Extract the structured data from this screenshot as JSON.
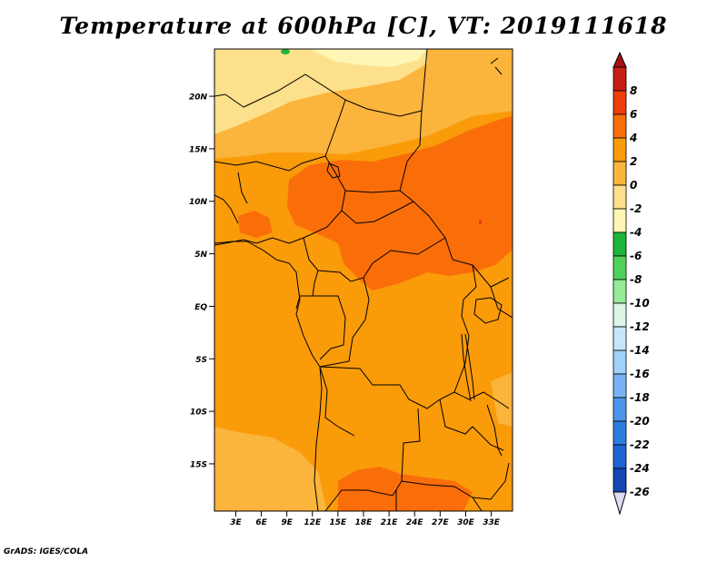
{
  "title": "Temperature at 600hPa [C], VT: 2019111618",
  "credit": "GrADS: IGES/COLA",
  "map": {
    "lat_labels": [
      {
        "label": "20N",
        "lat": 20
      },
      {
        "label": "15N",
        "lat": 15
      },
      {
        "label": "10N",
        "lat": 10
      },
      {
        "label": "5N",
        "lat": 5
      },
      {
        "label": "EQ",
        "lat": 0
      },
      {
        "label": "5S",
        "lat": -5
      },
      {
        "label": "10S",
        "lat": -10
      },
      {
        "label": "15S",
        "lat": -15
      }
    ],
    "lon_labels": [
      {
        "label": "3E",
        "lon": 3
      },
      {
        "label": "6E",
        "lon": 6
      },
      {
        "label": "9E",
        "lon": 9
      },
      {
        "label": "12E",
        "lon": 12
      },
      {
        "label": "15E",
        "lon": 15
      },
      {
        "label": "18E",
        "lon": 18
      },
      {
        "label": "21E",
        "lon": 21
      },
      {
        "label": "24E",
        "lon": 24
      },
      {
        "label": "27E",
        "lon": 27
      },
      {
        "label": "30E",
        "lon": 30
      },
      {
        "label": "33E",
        "lon": 33
      }
    ]
  },
  "colorbar": {
    "levels": [
      {
        "label": "8",
        "color": "#c81e14"
      },
      {
        "label": "6",
        "color": "#f03c0a"
      },
      {
        "label": "4",
        "color": "#fa6e0a"
      },
      {
        "label": "2",
        "color": "#fa9b0a"
      },
      {
        "label": "0",
        "color": "#fbb43c"
      },
      {
        "label": "-2",
        "color": "#fde08c"
      },
      {
        "label": "-4",
        "color": "#fff5b4"
      },
      {
        "label": "-6",
        "color": "#1eb43c"
      },
      {
        "label": "-8",
        "color": "#50d25a"
      },
      {
        "label": "-10",
        "color": "#96eb96"
      },
      {
        "label": "-12",
        "color": "#dcf5e6"
      },
      {
        "label": "-14",
        "color": "#c8e6fa"
      },
      {
        "label": "-16",
        "color": "#a0d2fa"
      },
      {
        "label": "-18",
        "color": "#78b4f5"
      },
      {
        "label": "-20",
        "color": "#4b96eb"
      },
      {
        "label": "-22",
        "color": "#2d7de1"
      },
      {
        "label": "-24",
        "color": "#1e64d2"
      },
      {
        "label": "-26",
        "color": "#1446b4"
      }
    ],
    "top_arrow_color": "#a01414",
    "bottom_arrow_color": "#dcdcf5",
    "extra_bottom_color": "#0a1464"
  }
}
